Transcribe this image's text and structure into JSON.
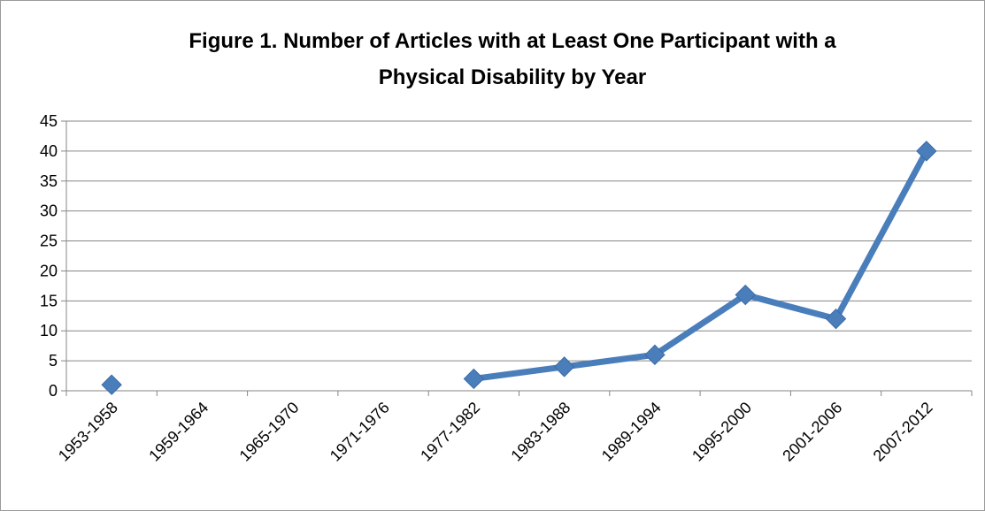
{
  "chart_data": {
    "type": "line",
    "title_lines": [
      "Figure 1. Number of Articles with at Least One Participant with a",
      "Physical Disability by Year"
    ],
    "categories": [
      "1953-1958",
      "1959-1964",
      "1965-1970",
      "1971-1976",
      "1977-1982",
      "1983-1988",
      "1989-1994",
      "1995-2000",
      "2001-2006",
      "2007-2012"
    ],
    "series": [
      {
        "values": [
          1,
          null,
          null,
          null,
          2,
          4,
          6,
          16,
          12,
          40
        ],
        "color": "#4a7ebb",
        "marker": "diamond"
      }
    ],
    "ylim": [
      0,
      45
    ],
    "yticks": [
      0,
      5,
      10,
      15,
      20,
      25,
      30,
      35,
      40,
      45
    ],
    "grid": true,
    "legend": "none"
  }
}
